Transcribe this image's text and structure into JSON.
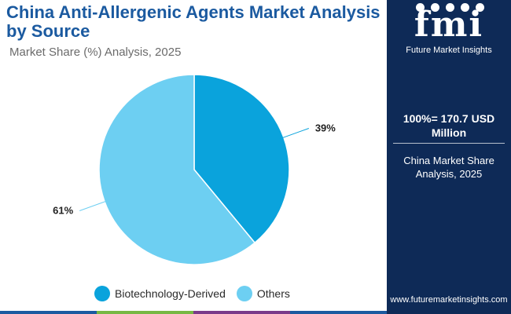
{
  "header": {
    "title": "China Anti-Allergenic Agents Market Analysis by Source",
    "subtitle": "Market Share (%) Analysis, 2025"
  },
  "chart_data": {
    "type": "pie",
    "categories": [
      "Biotechnology-Derived",
      "Others"
    ],
    "values": [
      39,
      61
    ],
    "labels": [
      "39%",
      "61%"
    ],
    "colors": [
      "#0aa3dc",
      "#6dcff2"
    ],
    "legend_position": "bottom"
  },
  "sidebar": {
    "logo_text": "fmi",
    "logo_subtitle": "Future Market Insights",
    "total": "100%= 170.7 USD Million",
    "note": "China Market Share Analysis, 2025",
    "website": "www.futuremarketinsights.com"
  },
  "bottom_bar_colors": [
    "#1b5aa0",
    "#77b843",
    "#7a3a8a",
    "#1b5aa0"
  ]
}
